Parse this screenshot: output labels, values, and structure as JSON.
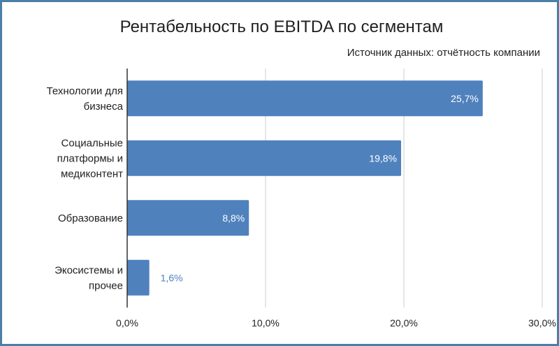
{
  "chart_data": {
    "type": "bar",
    "orientation": "horizontal",
    "title": "Рентабельность по EBITDA по сегментам",
    "subtitle": "Источник данных: отчётность компании",
    "categories": [
      [
        "Технологии для",
        "бизнеса"
      ],
      [
        "Социальные",
        "платформы и",
        "медиконтент"
      ],
      [
        "Образование"
      ],
      [
        "Экосистемы и",
        "прочее"
      ]
    ],
    "values": [
      25.7,
      19.8,
      8.8,
      1.6
    ],
    "value_labels": [
      "25,7%",
      "19,8%",
      "8,8%",
      "1,6%"
    ],
    "xlim": [
      0,
      30
    ],
    "x_ticks": [
      0,
      10,
      20,
      30
    ],
    "x_tick_labels": [
      "0,0%",
      "10,0%",
      "20,0%",
      "30,0%"
    ],
    "grid": true,
    "legend": "none",
    "bar_color": "#4f81bd",
    "grid_color": "#cccccc",
    "axis_color": "#333333",
    "label_inside_color": "#ffffff",
    "label_outside_color": "#4f81bd"
  }
}
